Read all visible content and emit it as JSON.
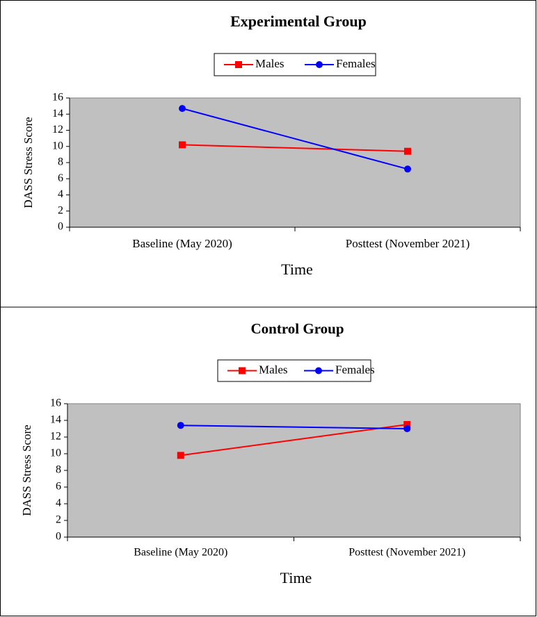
{
  "chart_data": [
    {
      "type": "line",
      "title": "Experimental Group",
      "xlabel": "Time",
      "ylabel": "DASS Stress Score",
      "categories": [
        "Baseline (May 2020)",
        "Posttest (November 2021)"
      ],
      "series": [
        {
          "name": "Males",
          "color": "#ff0000",
          "marker": "square",
          "values": [
            10.2,
            9.4
          ]
        },
        {
          "name": "Females",
          "color": "#0000ff",
          "marker": "circle",
          "values": [
            14.7,
            7.2
          ]
        }
      ],
      "ylim": [
        0,
        16
      ],
      "yticks": [
        0,
        2,
        4,
        6,
        8,
        10,
        12,
        14,
        16
      ],
      "grid": false,
      "plot_background": "#c0c0c0",
      "legend": "top"
    },
    {
      "type": "line",
      "title": "Control Group",
      "xlabel": "Time",
      "ylabel": "DASS Stress Score",
      "categories": [
        "Baseline (May 2020)",
        "Posttest (November 2021)"
      ],
      "series": [
        {
          "name": "Males",
          "color": "#ff0000",
          "marker": "square",
          "values": [
            9.8,
            13.5
          ]
        },
        {
          "name": "Females",
          "color": "#0000ff",
          "marker": "circle",
          "values": [
            13.4,
            13.0
          ]
        }
      ],
      "ylim": [
        0,
        16
      ],
      "yticks": [
        0,
        2,
        4,
        6,
        8,
        10,
        12,
        14,
        16
      ],
      "grid": false,
      "plot_background": "#c0c0c0",
      "legend": "top"
    }
  ]
}
